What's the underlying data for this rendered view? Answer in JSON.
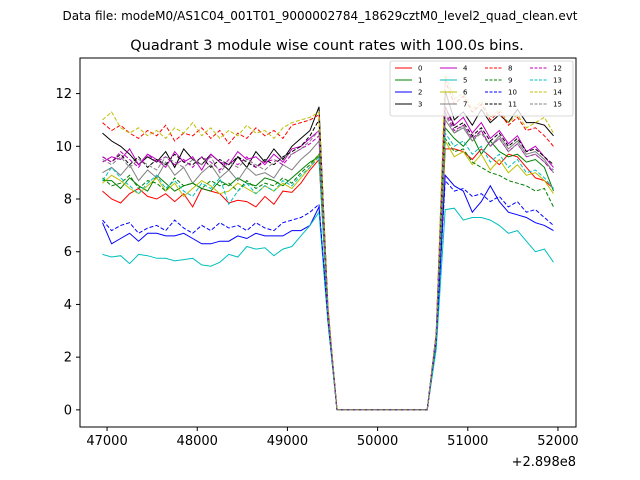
{
  "header_text": "Data file: modeM0/AS1C04_001T01_9000002784_18629cztM0_level2_quad_clean.evt",
  "chart_data": {
    "type": "line",
    "title": "Quadrant 3 module wise count rates with 100.0s bins.",
    "xlabel": "",
    "ylabel": "",
    "x_offset_label": "+2.898e8",
    "xlim": [
      46700,
      52200
    ],
    "ylim": [
      -0.65,
      13.35
    ],
    "x_ticks": [
      47000,
      48000,
      49000,
      50000,
      51000,
      52000
    ],
    "y_ticks": [
      0,
      2,
      4,
      6,
      8,
      10,
      12
    ],
    "grid": false,
    "legend_position": "top-right",
    "x": [
      46950,
      47050,
      47150,
      47250,
      47350,
      47450,
      47550,
      47650,
      47750,
      47850,
      47950,
      48050,
      48150,
      48250,
      48350,
      48450,
      48550,
      48650,
      48750,
      48850,
      48950,
      49050,
      49150,
      49250,
      49350,
      49450,
      49550,
      49650,
      49750,
      49850,
      49950,
      50050,
      50150,
      50250,
      50350,
      50450,
      50550,
      50650,
      50750,
      50850,
      50950,
      51050,
      51150,
      51250,
      51350,
      51450,
      51550,
      51650,
      51750,
      51850,
      51950
    ],
    "series": [
      {
        "name": "0",
        "color": "#ff0000",
        "dash": "solid",
        "values": [
          8.3,
          8.0,
          7.85,
          8.2,
          8.4,
          8.1,
          8.0,
          8.2,
          7.9,
          8.2,
          7.7,
          8.4,
          8.3,
          8.2,
          7.85,
          7.95,
          7.9,
          7.7,
          8.1,
          7.8,
          8.3,
          8.25,
          8.6,
          9.1,
          9.5,
          3.6,
          0,
          0,
          0,
          0,
          0,
          0,
          0,
          0,
          0,
          0,
          0,
          2.5,
          9.9,
          9.9,
          9.8,
          9.5,
          9.9,
          9.6,
          9.3,
          9.7,
          9.6,
          9.2,
          8.8,
          8.7,
          8.4
        ]
      },
      {
        "name": "1",
        "color": "#008000",
        "dash": "solid",
        "values": [
          8.7,
          8.7,
          8.4,
          8.8,
          8.5,
          8.3,
          8.9,
          8.6,
          8.3,
          8.5,
          8.6,
          8.4,
          8.3,
          8.7,
          8.5,
          8.8,
          8.6,
          8.5,
          8.8,
          8.7,
          8.5,
          8.8,
          9.1,
          9.4,
          9.6,
          3.7,
          0,
          0,
          0,
          0,
          0,
          0,
          0,
          0,
          0,
          0,
          0,
          2.7,
          10.7,
          10.3,
          10.0,
          10.4,
          9.7,
          10.2,
          9.8,
          9.6,
          9.7,
          9.4,
          9.5,
          9.2,
          8.3
        ]
      },
      {
        "name": "2",
        "color": "#0000ff",
        "dash": "solid",
        "values": [
          7.1,
          6.3,
          6.5,
          6.7,
          6.4,
          6.7,
          6.7,
          6.6,
          6.6,
          6.7,
          6.5,
          6.3,
          6.3,
          6.4,
          6.4,
          6.6,
          6.5,
          6.7,
          6.6,
          6.6,
          6.6,
          6.8,
          6.8,
          7.0,
          7.7,
          3.4,
          0,
          0,
          0,
          0,
          0,
          0,
          0,
          0,
          0,
          0,
          0,
          2.6,
          8.9,
          8.5,
          8.3,
          7.5,
          7.9,
          8.5,
          7.9,
          7.5,
          7.4,
          7.3,
          7.1,
          7.0,
          6.8
        ]
      },
      {
        "name": "3",
        "color": "#000000",
        "dash": "solid",
        "values": [
          10.5,
          10.2,
          10.0,
          9.7,
          9.3,
          9.6,
          9.4,
          9.8,
          9.2,
          9.9,
          9.5,
          9.3,
          9.7,
          9.4,
          9.1,
          9.6,
          9.2,
          9.8,
          9.4,
          9.9,
          9.5,
          10.0,
          10.3,
          10.6,
          11.5,
          3.8,
          0,
          0,
          0,
          0,
          0,
          0,
          0,
          0,
          0,
          0,
          0,
          2.9,
          12.1,
          11.0,
          11.3,
          10.8,
          11.4,
          10.9,
          11.2,
          10.9,
          11.4,
          10.9,
          10.9,
          10.8,
          10.4
        ]
      },
      {
        "name": "4",
        "color": "#bf00bf",
        "dash": "solid",
        "values": [
          9.4,
          9.6,
          9.5,
          9.9,
          9.3,
          9.7,
          9.5,
          9.2,
          9.8,
          9.4,
          9.6,
          9.1,
          9.7,
          9.4,
          9.3,
          9.8,
          9.5,
          9.6,
          9.3,
          9.7,
          9.4,
          9.9,
          10.0,
          10.3,
          10.6,
          3.7,
          0,
          0,
          0,
          0,
          0,
          0,
          0,
          0,
          0,
          0,
          0,
          2.8,
          11.5,
          10.8,
          11.1,
          10.5,
          10.9,
          10.3,
          10.6,
          10.1,
          10.4,
          9.8,
          10.0,
          9.6,
          9.2
        ]
      },
      {
        "name": "5",
        "color": "#00bfbf",
        "dash": "solid",
        "values": [
          5.9,
          5.8,
          5.85,
          5.55,
          5.9,
          5.85,
          5.75,
          5.75,
          5.65,
          5.7,
          5.75,
          5.5,
          5.45,
          5.6,
          5.9,
          5.8,
          6.2,
          6.1,
          6.15,
          5.85,
          6.1,
          6.2,
          6.6,
          7.0,
          7.5,
          3.3,
          0,
          0,
          0,
          0,
          0,
          0,
          0,
          0,
          0,
          0,
          0,
          2.3,
          7.6,
          7.65,
          7.2,
          7.3,
          7.3,
          7.2,
          7.0,
          6.7,
          6.8,
          6.4,
          6.0,
          6.1,
          5.6
        ]
      },
      {
        "name": "6",
        "color": "#bfbf00",
        "dash": "solid",
        "values": [
          8.6,
          8.9,
          8.7,
          8.4,
          8.2,
          8.5,
          8.8,
          8.3,
          8.6,
          8.1,
          8.4,
          8.7,
          8.5,
          8.2,
          8.3,
          8.6,
          8.4,
          8.2,
          8.5,
          8.3,
          8.6,
          8.4,
          8.8,
          9.2,
          9.7,
          3.6,
          0,
          0,
          0,
          0,
          0,
          0,
          0,
          0,
          0,
          0,
          0,
          2.7,
          10.2,
          9.6,
          9.8,
          9.3,
          9.7,
          9.1,
          9.5,
          9.0,
          9.3,
          8.9,
          9.0,
          8.7,
          8.2
        ]
      },
      {
        "name": "7",
        "color": "#808080",
        "dash": "solid",
        "values": [
          9.0,
          9.2,
          8.9,
          9.3,
          8.7,
          9.1,
          8.8,
          9.4,
          8.9,
          9.2,
          8.6,
          9.0,
          9.3,
          8.8,
          9.1,
          8.7,
          9.2,
          8.9,
          9.0,
          8.8,
          9.3,
          9.1,
          9.5,
          9.8,
          10.2,
          3.7,
          0,
          0,
          0,
          0,
          0,
          0,
          0,
          0,
          0,
          0,
          0,
          2.8,
          11.0,
          10.5,
          10.7,
          10.2,
          10.6,
          10.0,
          10.4,
          9.9,
          10.2,
          9.7,
          9.8,
          9.5,
          9.0
        ]
      },
      {
        "name": "8",
        "color": "#ff0000",
        "dash": "dashed",
        "values": [
          10.9,
          10.6,
          10.8,
          10.5,
          10.3,
          10.6,
          10.4,
          10.8,
          10.2,
          10.5,
          10.4,
          10.7,
          10.3,
          10.6,
          10.1,
          10.5,
          10.3,
          10.7,
          10.4,
          10.6,
          10.3,
          10.8,
          10.9,
          11.0,
          11.2,
          3.9,
          0,
          0,
          0,
          0,
          0,
          0,
          0,
          0,
          0,
          0,
          0,
          2.9,
          12.5,
          11.6,
          11.9,
          11.3,
          11.6,
          11.0,
          11.3,
          10.8,
          11.1,
          10.6,
          10.7,
          10.4,
          10.0
        ]
      },
      {
        "name": "9",
        "color": "#008000",
        "dash": "dashed",
        "values": [
          8.8,
          8.5,
          8.6,
          8.9,
          8.4,
          8.7,
          8.6,
          8.3,
          8.8,
          8.5,
          8.6,
          8.4,
          8.7,
          8.5,
          8.6,
          8.3,
          8.7,
          8.4,
          8.6,
          8.5,
          8.8,
          8.6,
          9.0,
          9.3,
          9.7,
          3.6,
          0,
          0,
          0,
          0,
          0,
          0,
          0,
          0,
          0,
          0,
          0,
          2.7,
          10.3,
          9.8,
          9.9,
          9.4,
          9.2,
          9.0,
          8.9,
          8.7,
          8.6,
          8.5,
          8.3,
          8.4,
          7.7
        ]
      },
      {
        "name": "10",
        "color": "#0000ff",
        "dash": "dashed",
        "values": [
          7.2,
          6.8,
          7.0,
          7.1,
          6.7,
          6.9,
          7.0,
          6.8,
          7.2,
          6.9,
          6.7,
          7.0,
          6.8,
          7.1,
          6.9,
          7.0,
          6.8,
          7.1,
          6.9,
          6.8,
          7.1,
          7.2,
          7.3,
          7.5,
          7.8,
          3.4,
          0,
          0,
          0,
          0,
          0,
          0,
          0,
          0,
          0,
          0,
          0,
          2.6,
          8.7,
          8.3,
          8.4,
          8.1,
          8.2,
          7.9,
          8.1,
          7.7,
          7.9,
          7.5,
          7.6,
          7.3,
          7.0
        ]
      },
      {
        "name": "11",
        "color": "#000000",
        "dash": "dashed",
        "values": [
          9.6,
          9.4,
          9.7,
          9.3,
          9.6,
          9.2,
          9.5,
          9.3,
          9.7,
          9.4,
          9.3,
          9.6,
          9.2,
          9.5,
          9.3,
          9.6,
          9.4,
          9.2,
          9.5,
          9.3,
          9.6,
          9.8,
          10.0,
          10.4,
          11.0,
          3.7,
          0,
          0,
          0,
          0,
          0,
          0,
          0,
          0,
          0,
          0,
          0,
          2.8,
          11.5,
          10.7,
          10.9,
          10.4,
          10.7,
          10.2,
          10.5,
          10.0,
          10.3,
          9.8,
          9.9,
          9.6,
          9.3
        ]
      },
      {
        "name": "12",
        "color": "#bf00bf",
        "dash": "dashed",
        "values": [
          9.6,
          9.4,
          9.8,
          9.5,
          9.2,
          9.7,
          9.4,
          9.6,
          9.3,
          9.5,
          9.2,
          9.6,
          9.4,
          9.1,
          9.5,
          9.3,
          9.6,
          9.2,
          9.4,
          9.5,
          9.3,
          9.7,
          9.9,
          10.1,
          10.4,
          3.7,
          0,
          0,
          0,
          0,
          0,
          0,
          0,
          0,
          0,
          0,
          0,
          2.8,
          11.3,
          10.6,
          10.8,
          10.3,
          10.6,
          10.0,
          10.3,
          9.8,
          10.1,
          9.6,
          9.7,
          9.4,
          9.0
        ]
      },
      {
        "name": "13",
        "color": "#00bfbf",
        "dash": "dashed",
        "values": [
          8.7,
          9.2,
          8.8,
          8.5,
          8.2,
          8.6,
          8.9,
          8.4,
          8.7,
          8.3,
          8.1,
          8.6,
          8.4,
          8.8,
          7.8,
          8.3,
          8.6,
          8.2,
          8.5,
          8.3,
          8.7,
          8.5,
          8.9,
          9.2,
          9.6,
          3.6,
          0,
          0,
          0,
          0,
          0,
          0,
          0,
          0,
          0,
          0,
          0,
          2.7,
          10.5,
          10.0,
          10.2,
          9.7,
          10.0,
          9.4,
          9.7,
          9.2,
          9.5,
          9.0,
          9.1,
          8.8,
          8.4
        ]
      },
      {
        "name": "14",
        "color": "#bfbf00",
        "dash": "dashed",
        "values": [
          11.0,
          11.3,
          10.7,
          10.5,
          10.7,
          10.4,
          10.6,
          10.3,
          10.7,
          10.5,
          10.9,
          10.4,
          10.7,
          10.3,
          10.6,
          10.4,
          10.8,
          10.5,
          10.6,
          10.3,
          10.7,
          10.9,
          11.0,
          11.1,
          11.3,
          3.9,
          0,
          0,
          0,
          0,
          0,
          0,
          0,
          0,
          0,
          0,
          0,
          2.9,
          12.7,
          11.8,
          12.0,
          11.4,
          11.7,
          11.1,
          11.4,
          10.9,
          11.2,
          10.7,
          10.9,
          11.1,
          10.5
        ]
      },
      {
        "name": "15",
        "color": "#808080",
        "dash": "dashed",
        "values": [
          9.5,
          9.3,
          9.6,
          9.2,
          9.5,
          9.3,
          9.1,
          9.6,
          9.4,
          9.2,
          9.5,
          9.3,
          9.6,
          9.0,
          9.4,
          9.2,
          9.5,
          9.3,
          9.1,
          9.4,
          9.6,
          9.7,
          9.9,
          10.2,
          10.6,
          3.7,
          0,
          0,
          0,
          0,
          0,
          0,
          0,
          0,
          0,
          0,
          0,
          2.8,
          11.2,
          10.5,
          10.8,
          10.2,
          10.5,
          10.0,
          10.3,
          9.8,
          10.1,
          9.6,
          9.7,
          9.4,
          9.1
        ]
      }
    ]
  }
}
